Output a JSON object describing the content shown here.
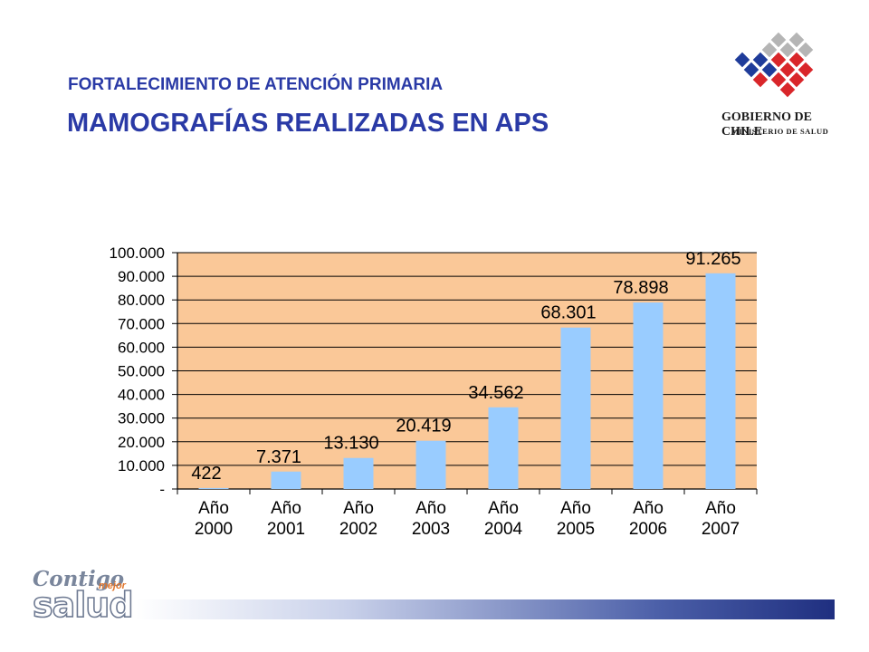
{
  "header": {
    "subtitle": "FORTALECIMIENTO DE ATENCIÓN PRIMARIA",
    "title": "MAMOGRAFÍAS REALIZADAS EN APS"
  },
  "gov_logo": {
    "line1": "GOBIERNO DE CHILE",
    "line2": "MINISTERIO DE SALUD"
  },
  "footer_logo": {
    "word1": "Contigo",
    "word2": "mejor",
    "word3": "salud"
  },
  "colors": {
    "title": "#2a3aa6",
    "plot_background": "#fac898",
    "bar": "#99ccff",
    "logo_blue": "#1f3c9a",
    "logo_red": "#d9262a",
    "logo_gray": "#b5b5b5"
  },
  "chart_data": {
    "type": "bar",
    "categories": [
      [
        "Año",
        "2000"
      ],
      [
        "Año",
        "2001"
      ],
      [
        "Año",
        "2002"
      ],
      [
        "Año",
        "2003"
      ],
      [
        "Año",
        "2004"
      ],
      [
        "Año",
        "2005"
      ],
      [
        "Año",
        "2006"
      ],
      [
        "Año",
        "2007"
      ]
    ],
    "values": [
      422,
      7371,
      13130,
      20419,
      34562,
      68301,
      78898,
      91265
    ],
    "data_labels": [
      "422",
      "7.371",
      "13.130",
      "20.419",
      "34.562",
      "68.301",
      "78.898",
      "91.265"
    ],
    "ylim": [
      0,
      100000
    ],
    "yticks": [
      0,
      10000,
      20000,
      30000,
      40000,
      50000,
      60000,
      70000,
      80000,
      90000,
      100000
    ],
    "ytick_labels": [
      "-",
      "10.000",
      "20.000",
      "30.000",
      "40.000",
      "50.000",
      "60.000",
      "70.000",
      "80.000",
      "90.000",
      "100.000"
    ],
    "grid": true,
    "legend": "none"
  }
}
